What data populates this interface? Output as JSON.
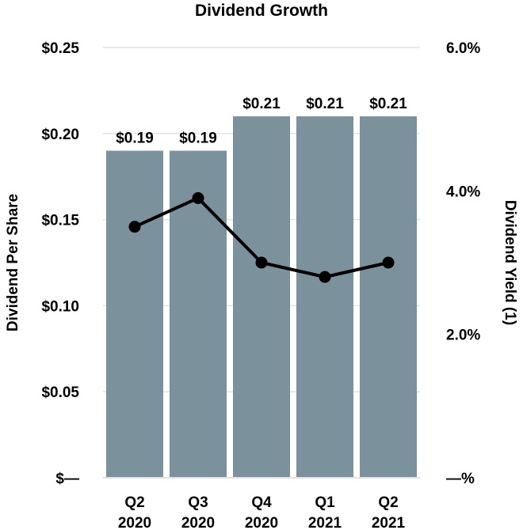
{
  "chart_data": {
    "type": "bar",
    "title": "Dividend Growth",
    "categories": [
      [
        "Q2",
        "2020"
      ],
      [
        "Q3",
        "2020"
      ],
      [
        "Q4",
        "2020"
      ],
      [
        "Q1",
        "2021"
      ],
      [
        "Q2",
        "2021"
      ]
    ],
    "series": [
      {
        "name": "Dividend Per Share",
        "type": "bar",
        "axis": "left",
        "values": [
          0.19,
          0.19,
          0.21,
          0.21,
          0.21
        ],
        "data_labels": [
          "$0.19",
          "$0.19",
          "$0.21",
          "$0.21",
          "$0.21"
        ]
      },
      {
        "name": "Dividend Yield (1)",
        "type": "line",
        "axis": "right",
        "values": [
          3.5,
          3.9,
          3.0,
          2.8,
          3.0
        ]
      }
    ],
    "ylabel_left": "Dividend Per Share",
    "ylabel_right": "Dividend Yield (1)",
    "ylim_left": [
      0,
      0.25
    ],
    "ylim_right": [
      0,
      6.0
    ],
    "yticks_left": [
      0,
      0.05,
      0.1,
      0.15,
      0.2,
      0.25
    ],
    "yticks_left_labels": [
      "$—",
      "$0.05",
      "$0.10",
      "$0.15",
      "$0.20",
      "$0.25"
    ],
    "yticks_right": [
      0,
      2.0,
      4.0,
      6.0
    ],
    "yticks_right_labels": [
      "—%",
      "2.0%",
      "4.0%",
      "6.0%"
    ],
    "grid": true,
    "colors": {
      "bar": "#7b919b",
      "line": "#000000",
      "grid": "#e3e3e3"
    }
  }
}
